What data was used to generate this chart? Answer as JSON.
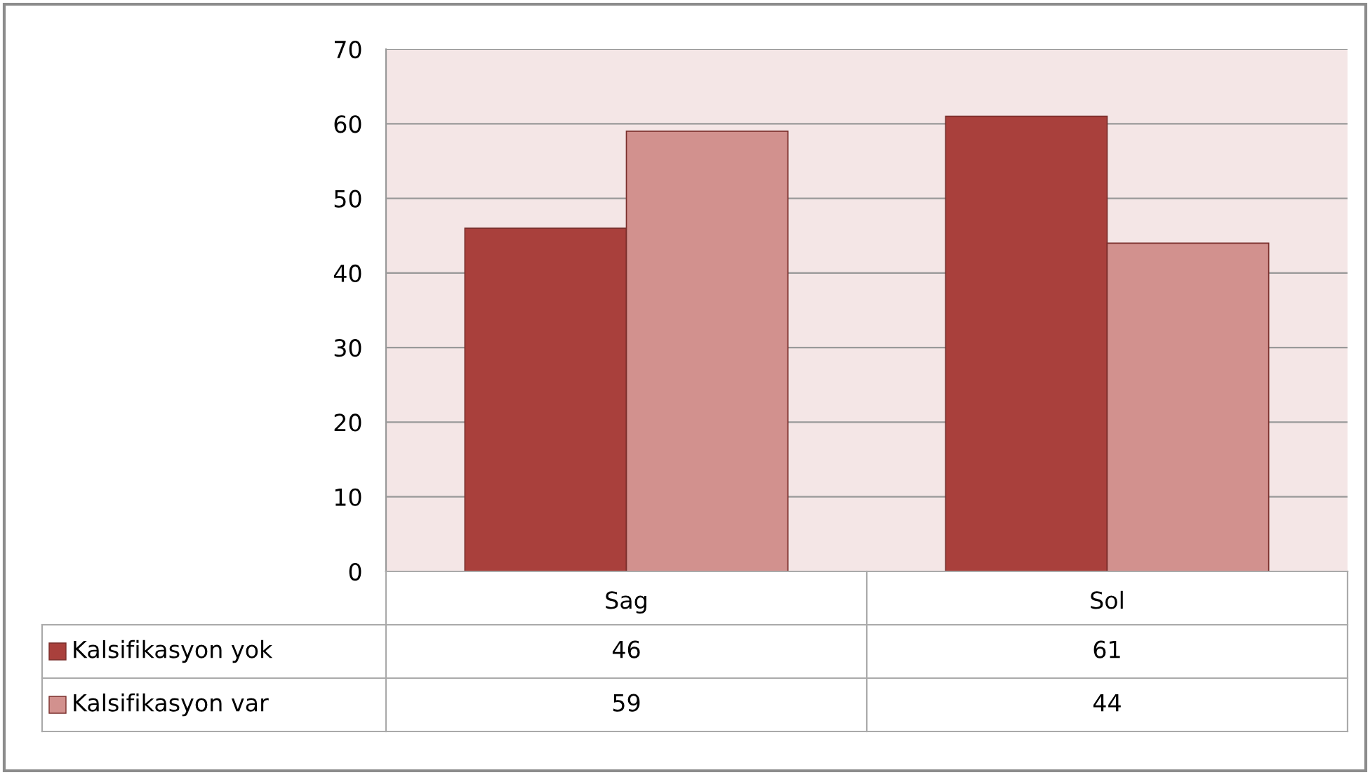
{
  "chart_data": {
    "type": "bar",
    "categories": [
      "Sag",
      "Sol"
    ],
    "series": [
      {
        "name": "Kalsifikasyon yok",
        "color": "#a9403c",
        "values": [
          46,
          61
        ]
      },
      {
        "name": "Kalsifikasyon var",
        "color": "#d2918e",
        "values": [
          59,
          44
        ]
      }
    ],
    "ylim": [
      0,
      70
    ],
    "yticks": [
      0,
      10,
      20,
      30,
      40,
      50,
      60,
      70
    ],
    "grid": "y",
    "data_labels": true,
    "legend": "bottom left"
  }
}
